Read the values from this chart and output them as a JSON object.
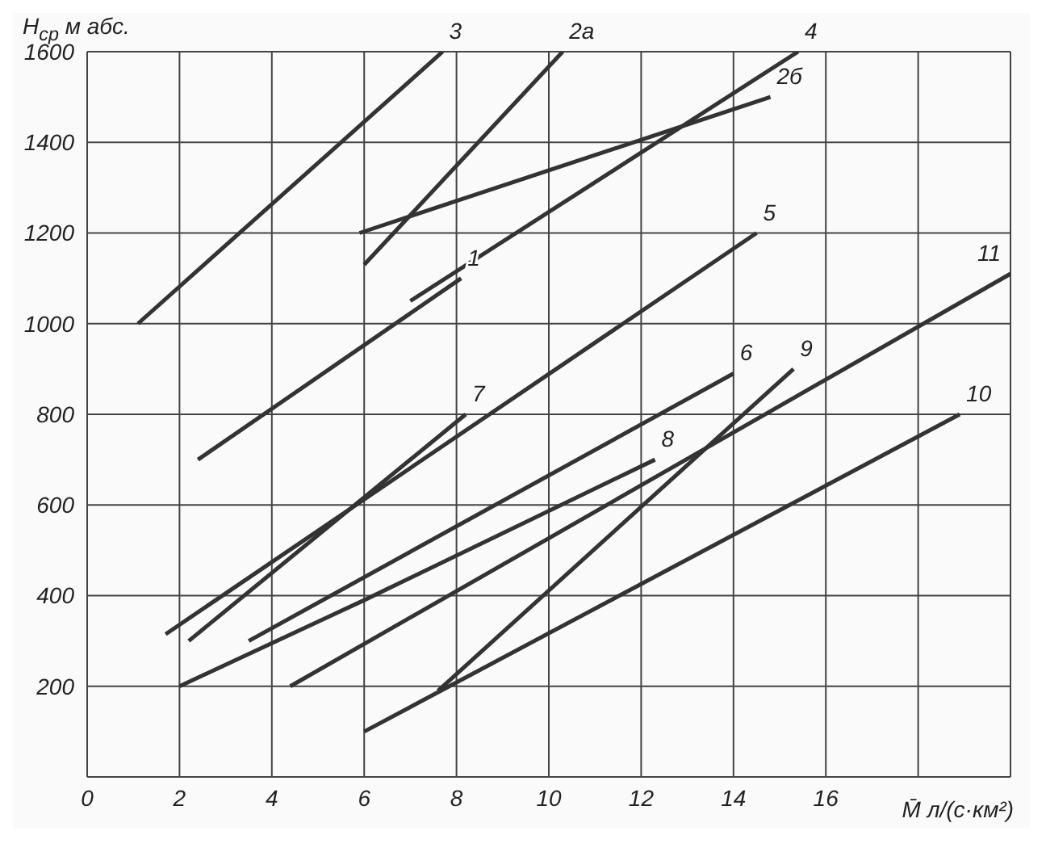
{
  "chart_data": {
    "type": "line",
    "xlabel": "M̄ л/(с·км²)",
    "ylabel": "H$_{ср}$ м абс.",
    "xlim": [
      0,
      20
    ],
    "ylim": [
      0,
      1600
    ],
    "xticks": [
      0,
      2,
      4,
      6,
      8,
      10,
      12,
      14,
      16,
      {
        "value": 18,
        "label": null
      },
      {
        "value": 20,
        "label": null
      }
    ],
    "yticks": [
      {
        "value": 0,
        "label": null
      },
      200,
      400,
      600,
      800,
      1000,
      1200,
      1400,
      1600
    ],
    "grid": true,
    "legend": false,
    "marker": "none",
    "line_style": "solid",
    "series": [
      {
        "name": "1",
        "color": "#333333",
        "x": [
          2.4,
          8.1
        ],
        "values": [
          700,
          1100
        ]
      },
      {
        "name": "2а",
        "color": "#333333",
        "x": [
          6,
          10.3
        ],
        "values": [
          1130,
          1600
        ]
      },
      {
        "name": "2б",
        "color": "#333333",
        "x": [
          5.9,
          14.8
        ],
        "values": [
          1200,
          1500
        ]
      },
      {
        "name": "3",
        "color": "#333333",
        "x": [
          1.1,
          7.7
        ],
        "values": [
          1000,
          1600
        ]
      },
      {
        "name": "4",
        "color": "#333333",
        "x": [
          7,
          15.4
        ],
        "values": [
          1050,
          1600
        ]
      },
      {
        "name": "5",
        "color": "#333333",
        "x": [
          1.7,
          14.5
        ],
        "values": [
          315,
          1200
        ]
      },
      {
        "name": "6",
        "color": "#333333",
        "x": [
          3.5,
          14
        ],
        "values": [
          300,
          890
        ]
      },
      {
        "name": "7",
        "color": "#333333",
        "x": [
          2.2,
          8.2
        ],
        "values": [
          300,
          800
        ]
      },
      {
        "name": "8",
        "color": "#333333",
        "x": [
          2,
          6,
          12.3
        ],
        "values": [
          200,
          390,
          700
        ]
      },
      {
        "name": "9",
        "color": "#333333",
        "x": [
          7.6,
          15.3
        ],
        "values": [
          190,
          900
        ]
      },
      {
        "name": "10",
        "color": "#333333",
        "x": [
          6,
          18.9
        ],
        "values": [
          100,
          800
        ]
      },
      {
        "name": "11",
        "color": "#333333",
        "x": [
          4.4,
          20
        ],
        "values": [
          200,
          1110
        ]
      }
    ]
  }
}
